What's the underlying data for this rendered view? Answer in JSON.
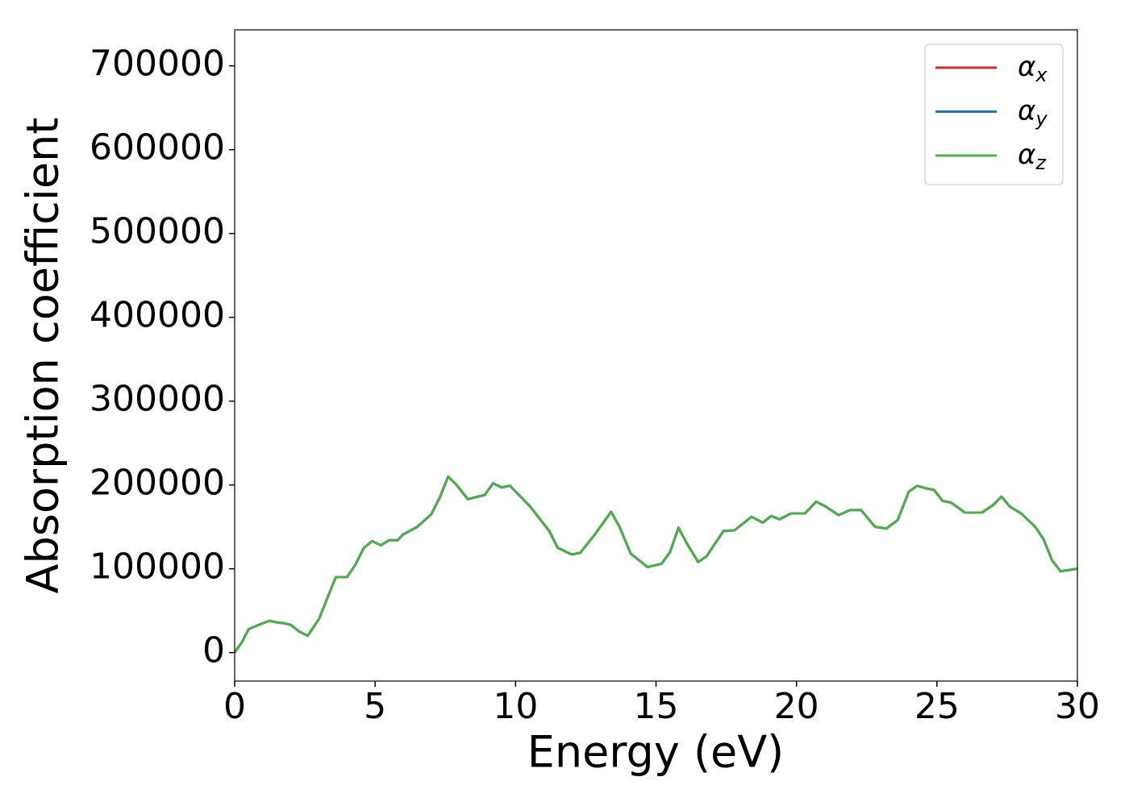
{
  "chart_data": {
    "type": "line",
    "xlabel": "Energy (eV)",
    "ylabel": "Absorption coefficient",
    "x": [
      0,
      0.25,
      0.5,
      1.0,
      1.25,
      1.5,
      1.75,
      2.0,
      2.3,
      2.6,
      3.0,
      3.3,
      3.6,
      4.0,
      4.3,
      4.6,
      4.9,
      5.2,
      5.5,
      5.8,
      6.0,
      6.5,
      7.0,
      7.3,
      7.6,
      7.9,
      8.3,
      8.9,
      9.2,
      9.5,
      9.8,
      10.5,
      11.2,
      11.5,
      12.0,
      12.3,
      12.8,
      13.4,
      13.7,
      14.1,
      14.4,
      14.7,
      15.2,
      15.5,
      15.8,
      16.1,
      16.5,
      16.8,
      17.4,
      17.8,
      18.4,
      18.8,
      19.1,
      19.4,
      19.8,
      20.3,
      20.7,
      21.0,
      21.5,
      21.9,
      22.3,
      22.8,
      23.2,
      23.6,
      24.0,
      24.3,
      24.6,
      24.9,
      25.2,
      25.5,
      26.0,
      26.6,
      27.0,
      27.3,
      27.6,
      28.0,
      28.5,
      28.8,
      29.1,
      29.4,
      30.0
    ],
    "series": [
      {
        "name": "αx",
        "color": "#d62728",
        "values": [
          0,
          12000,
          28000,
          35000,
          38000,
          36000,
          35000,
          33000,
          25000,
          20000,
          40000,
          65000,
          90000,
          90000,
          105000,
          125000,
          133000,
          128000,
          134000,
          134000,
          141000,
          150000,
          165000,
          185000,
          210000,
          200000,
          183000,
          188000,
          202000,
          197000,
          199000,
          175000,
          145000,
          125000,
          117000,
          119000,
          140000,
          168000,
          150000,
          118000,
          110000,
          102000,
          106000,
          120000,
          149000,
          130000,
          108000,
          115000,
          145000,
          146000,
          162000,
          155000,
          163000,
          159000,
          166000,
          166000,
          180000,
          175000,
          164000,
          170000,
          170000,
          150000,
          148000,
          158000,
          192000,
          199000,
          196000,
          194000,
          181000,
          179000,
          167000,
          167000,
          176000,
          186000,
          174000,
          166000,
          150000,
          135000,
          110000,
          97000,
          100000
        ]
      },
      {
        "name": "αy",
        "color": "#1f77b4",
        "values": [
          0,
          12000,
          28000,
          35000,
          38000,
          36000,
          35000,
          33000,
          25000,
          20000,
          40000,
          65000,
          90000,
          90000,
          105000,
          125000,
          133000,
          128000,
          134000,
          134000,
          141000,
          150000,
          165000,
          185000,
          210000,
          200000,
          183000,
          188000,
          202000,
          197000,
          199000,
          175000,
          145000,
          125000,
          117000,
          119000,
          140000,
          168000,
          150000,
          118000,
          110000,
          102000,
          106000,
          120000,
          149000,
          130000,
          108000,
          115000,
          145000,
          146000,
          162000,
          155000,
          163000,
          159000,
          166000,
          166000,
          180000,
          175000,
          164000,
          170000,
          170000,
          150000,
          148000,
          158000,
          192000,
          199000,
          196000,
          194000,
          181000,
          179000,
          167000,
          167000,
          176000,
          186000,
          174000,
          166000,
          150000,
          135000,
          110000,
          97000,
          100000
        ]
      },
      {
        "name": "αz",
        "color": "#4daf4a",
        "values": [
          0,
          12000,
          28000,
          35000,
          38000,
          36000,
          35000,
          33000,
          25000,
          20000,
          40000,
          65000,
          90000,
          90000,
          105000,
          125000,
          133000,
          128000,
          134000,
          134000,
          141000,
          150000,
          165000,
          185000,
          210000,
          200000,
          183000,
          188000,
          202000,
          197000,
          199000,
          175000,
          145000,
          125000,
          117000,
          119000,
          140000,
          168000,
          150000,
          118000,
          110000,
          102000,
          106000,
          120000,
          149000,
          130000,
          108000,
          115000,
          145000,
          146000,
          162000,
          155000,
          163000,
          159000,
          166000,
          166000,
          180000,
          175000,
          164000,
          170000,
          170000,
          150000,
          148000,
          158000,
          192000,
          199000,
          196000,
          194000,
          181000,
          179000,
          167000,
          167000,
          176000,
          186000,
          174000,
          166000,
          150000,
          135000,
          110000,
          97000,
          100000
        ]
      }
    ],
    "xlim": [
      0,
      30
    ],
    "xticks": [
      0,
      5,
      10,
      15,
      20,
      25,
      30
    ],
    "ylim": [
      -34000,
      743000
    ],
    "yticks": [
      0,
      100000,
      200000,
      300000,
      400000,
      500000,
      600000,
      700000
    ],
    "grid": false,
    "legend": "upper right"
  }
}
